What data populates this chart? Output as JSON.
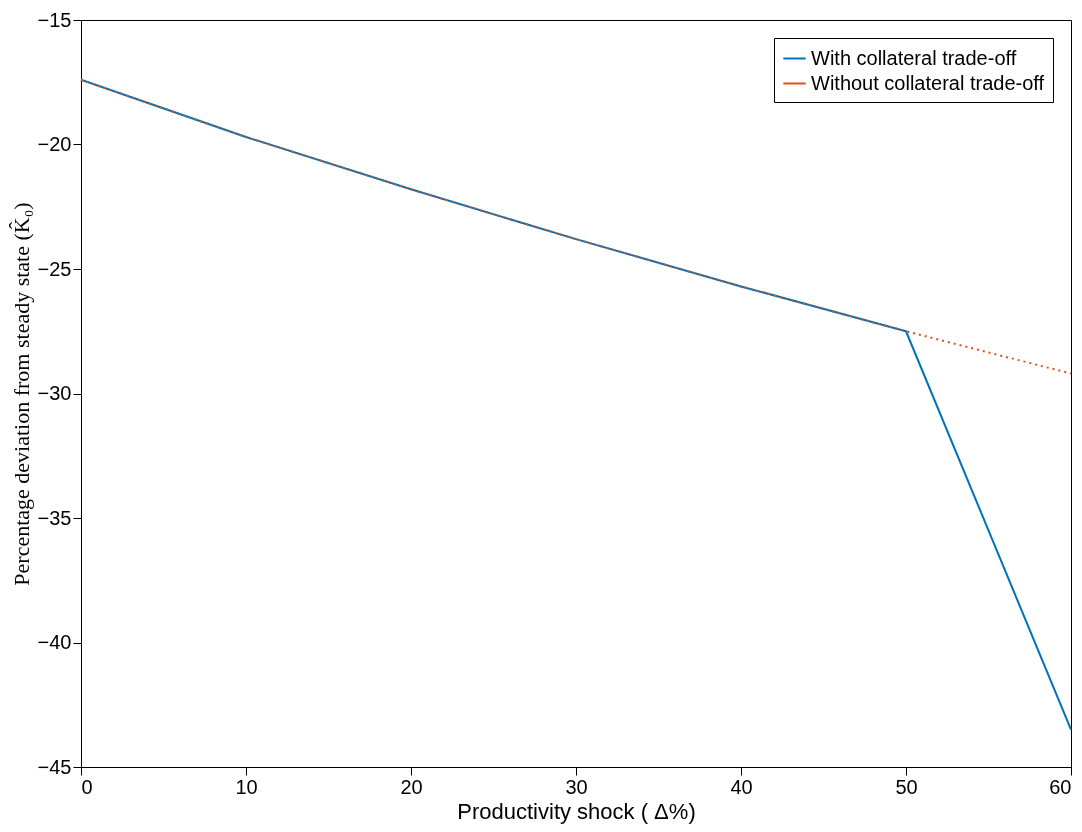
{
  "chart_data": {
    "type": "line",
    "xlabel": "Productivity shock ( Δ%)",
    "ylabel": "Percentage deviation from steady state (K̂₀)",
    "xlim": [
      0,
      60
    ],
    "xticks": [
      0,
      10,
      20,
      30,
      40,
      50,
      60
    ],
    "ylim": [
      -45,
      -15
    ],
    "yticks": [
      -45,
      -40,
      -35,
      -30,
      -25,
      -20,
      -15
    ],
    "grid": false,
    "legend": "top right",
    "marker": "none",
    "series": [
      {
        "name": "With collateral trade-off",
        "color": "#0072bd",
        "line_style": "solid",
        "x": [
          0,
          10,
          20,
          30,
          40,
          50,
          60
        ],
        "values": [
          -17.4,
          -19.7,
          -21.8,
          -23.8,
          -25.7,
          -27.5,
          -43.5
        ]
      },
      {
        "name": "Without collateral trade-off",
        "color": "#d95319",
        "line_style": "dotted",
        "x": [
          0,
          10,
          20,
          30,
          40,
          50,
          60
        ],
        "values": [
          -17.4,
          -19.7,
          -21.8,
          -23.8,
          -25.7,
          -27.5,
          -29.2
        ]
      }
    ]
  }
}
